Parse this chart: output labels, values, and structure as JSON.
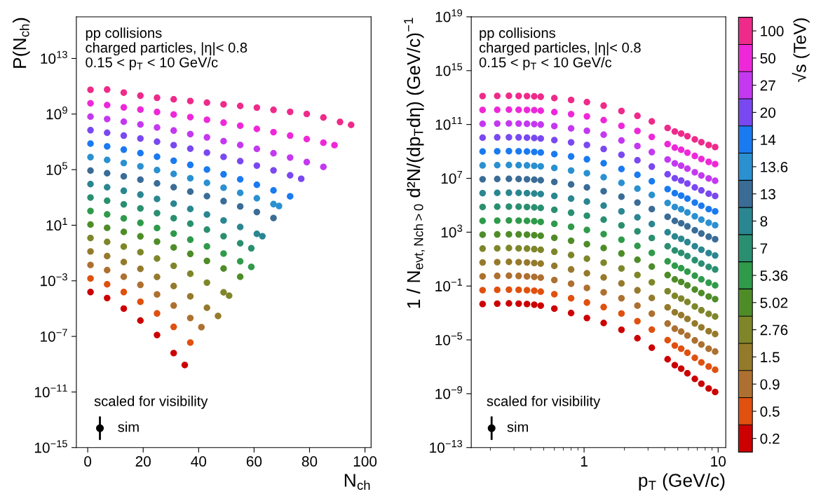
{
  "chart_data": [
    {
      "type": "scatter",
      "xlabel": "N$_{ch}$",
      "ylabel": "P(N$_{ch}$)",
      "log": "y",
      "grid": false,
      "marker": "circle",
      "annotations": [
        "pp collisions\ncharged particles, |η|< 0.8\n0.15 < p$_{T}$ < 10 GeV/c",
        "scaled for visibility",
        "sim"
      ],
      "xlim": [
        -4.1,
        102.2
      ],
      "xticks": [
        0,
        20,
        40,
        60,
        80,
        100
      ],
      "ylim": [
        1e-15,
        1e+16
      ],
      "yticks": [
        {
          "value": 1e-15,
          "label": "10$^{−15}$"
        },
        {
          "value": 1e-11,
          "label": "10$^{−11}$"
        },
        {
          "value": 1e-07,
          "label": "10$^{−7}$"
        },
        {
          "value": 0.001,
          "label": "10$^{−3}$"
        },
        {
          "value": 10,
          "label": "10$^{1}$"
        },
        {
          "value": 100000.0,
          "label": "10$^{5}$"
        },
        {
          "value": 1000000000.0,
          "label": "10$^{9}$"
        },
        {
          "value": 10000000000000.0,
          "label": "10$^{13}$"
        }
      ],
      "series": [
        {
          "color": "#cc0000",
          "x": [
            1,
            7,
            13,
            19,
            25,
            31,
            35
          ],
          "values": [
            0.000155,
            5.75e-05,
            1e-05,
            1.38e-06,
            1.26e-07,
            6.3e-09,
            8.7e-10
          ]
        },
        {
          "color": "#e0500e",
          "x": [
            1,
            7,
            13,
            19,
            25,
            31,
            37
          ],
          "values": [
            0.00148,
            0.00056,
            0.000155,
            3.1e-05,
            4.5e-06,
            4.8e-07,
            3.6e-08
          ]
        },
        {
          "color": "#ad7030",
          "x": [
            1,
            7,
            13,
            19,
            25,
            31,
            37,
            41
          ],
          "values": [
            0.0138,
            0.0059,
            0.00195,
            0.00051,
            0.000105,
            1.66e-05,
            2.1e-06,
            4.6e-07
          ]
        },
        {
          "color": "#957a2c",
          "x": [
            1,
            7,
            13,
            19,
            25,
            31,
            37,
            43,
            47
          ],
          "values": [
            0.129,
            0.06,
            0.0224,
            0.0072,
            0.0019,
            0.00042,
            7.6e-05,
            1.15e-05,
            2.95e-06
          ]
        },
        {
          "color": "#7f862a",
          "x": [
            1,
            7,
            13,
            19,
            25,
            31,
            37,
            43,
            49,
            51
          ],
          "values": [
            1.2,
            0.63,
            0.29,
            0.115,
            0.04,
            0.012,
            0.0032,
            0.00074,
            0.000148,
            8.5e-05
          ]
        },
        {
          "color": "#4e8c28",
          "x": [
            1,
            7,
            13,
            19,
            25,
            31,
            37,
            43,
            49,
            55
          ],
          "values": [
            11.2,
            6.5,
            3.3,
            1.58,
            0.66,
            0.25,
            0.087,
            0.027,
            0.0076,
            0.00195
          ]
        },
        {
          "color": "#2f9a4a",
          "x": [
            1,
            7,
            13,
            19,
            25,
            31,
            37,
            43,
            49,
            55,
            59
          ],
          "values": [
            105,
            60,
            31,
            14.8,
            6.3,
            2.5,
            0.91,
            0.3,
            0.091,
            0.025,
            0.01
          ]
        },
        {
          "color": "#2a8f70",
          "x": [
            1,
            7,
            13,
            19,
            25,
            31,
            37,
            43,
            49,
            55,
            59
          ],
          "values": [
            980,
            575,
            316,
            162,
            74,
            32,
            12.9,
            4.8,
            1.62,
            0.5,
            0.22
          ]
        },
        {
          "color": "#2a8690",
          "x": [
            1,
            7,
            13,
            19,
            25,
            31,
            37,
            43,
            49,
            55,
            61,
            63
          ],
          "values": [
            9100,
            5400,
            3000,
            1580,
            780,
            355,
            148,
            59,
            22,
            7.4,
            2.4,
            1.62
          ]
        },
        {
          "color": "#3a6c96",
          "x": [
            1,
            7,
            13,
            19,
            25,
            31,
            37,
            43,
            49,
            55,
            61,
            67
          ],
          "values": [
            85000,
            55000,
            33000,
            19000,
            10200,
            5400,
            2600,
            1230,
            540,
            224,
            89,
            33
          ]
        },
        {
          "color": "#2a90d0",
          "x": [
            1,
            7,
            13,
            19,
            25,
            31,
            37,
            43,
            49,
            55,
            61,
            67,
            69
          ],
          "values": [
            790000.0,
            500000.0,
            300000.0,
            174000.0,
            93000.0,
            49000.0,
            24000.0,
            11200.0,
            5000,
            2140,
            870,
            330,
            240
          ]
        },
        {
          "color": "#1a7af0",
          "x": [
            1,
            7,
            13,
            19,
            25,
            31,
            37,
            43,
            49,
            55,
            61,
            67,
            73
          ],
          "values": [
            7400000.0,
            4700000.0,
            2750000.0,
            1550000.0,
            850000.0,
            440000.0,
            220000.0,
            102000.0,
            46000.0,
            20000.0,
            8100,
            3200,
            1200
          ]
        },
        {
          "color": "#7a48f0",
          "x": [
            1,
            7,
            13,
            19,
            25,
            31,
            37,
            43,
            49,
            55,
            61,
            67,
            73,
            77
          ],
          "values": [
            69000000.0,
            45000000.0,
            28000000.0,
            17400000.0,
            10200000.0,
            5800000.0,
            3200000.0,
            1660000.0,
            830000.0,
            410000.0,
            195000.0,
            89000.0,
            39000.0,
            22000.0
          ]
        },
        {
          "color": "#c438f0",
          "x": [
            1,
            7,
            13,
            19,
            25,
            31,
            37,
            43,
            49,
            55,
            61,
            67,
            73,
            79,
            85
          ],
          "values": [
            650000000.0,
            440000000.0,
            280000000.0,
            178000000.0,
            107000000.0,
            65000000.0,
            36000000.0,
            21000000.0,
            11200000.0,
            5900000.0,
            3100000.0,
            1510000.0,
            740000.0,
            350000.0,
            158000.0
          ]
        },
        {
          "color": "#ee28d8",
          "x": [
            1,
            7,
            13,
            19,
            25,
            31,
            37,
            43,
            49,
            55,
            61,
            67,
            73,
            79,
            85,
            89
          ],
          "values": [
            6000000000.0,
            4400000000.0,
            3000000000.0,
            2100000000.0,
            1410000000.0,
            930000000.0,
            600000000.0,
            390000000.0,
            240000000.0,
            145000000.0,
            85000000.0,
            50000000.0,
            28000000.0,
            15800000.0,
            8700000.0,
            5800000.0
          ]
        },
        {
          "color": "#ee2a8a",
          "x": [
            1,
            7,
            13,
            19,
            25,
            31,
            37,
            43,
            49,
            55,
            61,
            67,
            73,
            79,
            85,
            91,
            95
          ],
          "values": [
            56000000000.0,
            58000000000.0,
            35000000000.0,
            21000000000.0,
            14800000000.0,
            11500000000.0,
            8700000000.0,
            6600000000.0,
            5000000000.0,
            3800000000.0,
            2900000000.0,
            2000000000.0,
            1450000000.0,
            1020000000.0,
            560000000.0,
            270000000.0,
            166000000.0
          ]
        }
      ]
    },
    {
      "type": "scatter",
      "xlabel": "p$_{T}$ (GeV/c)",
      "ylabel": "1 / N$_{evt,Nch>0}$ d²N/(dp$_{T}$dη) (GeV/c)$^{−1}$",
      "log": "xy",
      "grid": false,
      "legend": "right",
      "marker": "circle",
      "clabel": "√s (TeV)",
      "annotations": [
        "pp collisions\ncharged particles, |η|< 0.8\n0.15 < p$_{T}$ < 10 GeV/c",
        "scaled for visibility",
        "sim"
      ],
      "x": [
        0.175,
        0.225,
        0.275,
        0.325,
        0.375,
        0.425,
        0.475,
        0.6,
        0.8,
        1.05,
        1.4,
        1.9,
        2.5,
        3.2,
        4.2,
        4.75,
        5.3,
        5.9,
        6.7,
        7.5,
        8.5,
        9.5
      ],
      "xlim": [
        0.144,
        11.4
      ],
      "xticks": [
        1,
        10
      ],
      "ylim": [
        1e-13,
        1e+19
      ],
      "yticks": [
        {
          "value": 1e-13,
          "label": "10$^{−13}$"
        },
        {
          "value": 1e-09,
          "label": "10$^{−9}$"
        },
        {
          "value": 1e-05,
          "label": "10$^{−5}$"
        },
        {
          "value": 0.1,
          "label": "10$^{−1}$"
        },
        {
          "value": 1000,
          "label": "10$^{3}$"
        },
        {
          "value": 10000000.0,
          "label": "10$^{7}$"
        },
        {
          "value": 100000000000.0,
          "label": "10$^{11}$"
        },
        {
          "value": 1000000000000000.0,
          "label": "10$^{15}$"
        },
        {
          "value": 1e+19,
          "label": "10$^{19}$"
        }
      ],
      "series": [
        {
          "name": "0.2",
          "color": "#cc0000",
          "values": [
            0.0046,
            0.0049,
            0.0051,
            0.0049,
            0.0046,
            0.0041,
            0.0035,
            0.0021,
            0.00098,
            0.00042,
            0.000178,
            5.6e-05,
            1.32e-05,
            2.6e-06,
            3.6e-07,
            1.32e-07,
            7.2e-08,
            3.3e-08,
            1.26e-08,
            5.5e-09,
            2.45e-09,
            1.35e-09
          ]
        },
        {
          "name": "0.5",
          "color": "#e0500e",
          "values": [
            0.049,
            0.052,
            0.054,
            0.052,
            0.049,
            0.045,
            0.038,
            0.0245,
            0.0123,
            0.0059,
            0.0027,
            0.00091,
            0.000245,
            5.8e-05,
            9.5e-06,
            3.8e-06,
            2.2e-06,
            1.1e-06,
            4.6e-07,
            2.1e-07,
            1.05e-07,
            6e-08
          ]
        },
        {
          "name": "0.9",
          "color": "#ad7030",
          "values": [
            0.52,
            0.56,
            0.58,
            0.56,
            0.52,
            0.48,
            0.42,
            0.28,
            0.148,
            0.072,
            0.034,
            0.0123,
            0.0035,
            0.00089,
            0.000162,
            6.8e-05,
            4.1e-05,
            2.1e-05,
            9.1e-06,
            4.5e-06,
            2.2e-06,
            1.35e-06
          ]
        },
        {
          "name": "1.5",
          "color": "#957a2c",
          "values": [
            5.6,
            5.9,
            6.2,
            5.9,
            5.6,
            5.1,
            4.6,
            3.1,
            1.7,
            0.89,
            0.43,
            0.155,
            0.048,
            0.0129,
            0.0026,
            0.00112,
            0.00069,
            0.00036,
            0.000166,
            8.5e-05,
            4.4e-05,
            2.7e-05
          ]
        },
        {
          "name": "2.76",
          "color": "#7f862a",
          "values": [
            60,
            63,
            66,
            63,
            60,
            55,
            49,
            35,
            20,
            10.7,
            5.4,
            2.0,
            0.66,
            0.19,
            0.041,
            0.0186,
            0.0117,
            0.0065,
            0.003,
            0.00158,
            0.00085,
            0.00054
          ]
        },
        {
          "name": "5.02",
          "color": "#4e8c28",
          "values": [
            650,
            680,
            690,
            680,
            650,
            600,
            540,
            380,
            230,
            129,
            66,
            26,
            8.9,
            2.75,
            0.65,
            0.31,
            0.2,
            0.112,
            0.055,
            0.03,
            0.0166,
            0.0107
          ]
        },
        {
          "name": "5.36",
          "color": "#2f9a4a",
          "values": [
            6900,
            7200,
            7400,
            7200,
            6900,
            6500,
            5800,
            4200,
            2500,
            1450,
            720,
            275,
            95,
            29,
            6.8,
            3.2,
            2.1,
            1.17,
            0.58,
            0.31,
            0.174,
            0.112
          ]
        },
        {
          "name": "7",
          "color": "#2a8f70",
          "values": [
            74000.0,
            78000.0,
            79000.0,
            78000.0,
            74000.0,
            69000.0,
            63000.0,
            46000.0,
            28000.0,
            16600.0,
            8500,
            3200,
            1150,
            370,
            89,
            44,
            29,
            16.6,
            8.3,
            4.6,
            2.6,
            1.7
          ]
        },
        {
          "name": "8",
          "color": "#2a8690",
          "values": [
            790000.0,
            830000.0,
            850000.0,
            830000.0,
            790000.0,
            740000.0,
            680000.0,
            490000.0,
            310000.0,
            186000.0,
            93000.0,
            35000.0,
            12600.0,
            4000,
            980,
            480,
            320,
            182,
            91,
            50,
            28,
            18.6
          ]
        },
        {
          "name": "13",
          "color": "#3a6c96",
          "values": [
            8500000.0,
            8900000.0,
            9100000.0,
            8900000.0,
            8500000.0,
            7900000.0,
            7200000.0,
            5400000.0,
            3500000.0,
            2100000.0,
            1100000.0,
            430000.0,
            158000.0,
            52000.0,
            13800.0,
            6900,
            4600,
            2700,
            1380,
            790,
            460,
            300
          ]
        },
        {
          "name": "13.6",
          "color": "#2a90d0",
          "values": [
            91000000.0,
            95000000.0,
            98000000.0,
            95000000.0,
            91000000.0,
            85000000.0,
            78000000.0,
            59000000.0,
            38000000.0,
            24000000.0,
            12000000.0,
            4600000.0,
            1700000.0,
            580000.0,
            148000.0,
            74000.0,
            50000.0,
            29000.0,
            15100.0,
            8500,
            5000,
            3300
          ]
        },
        {
          "name": "14",
          "color": "#1a7af0",
          "values": [
            980000000.0,
            1020000000.0,
            1050000000.0,
            1020000000.0,
            980000000.0,
            910000000.0,
            830000000.0,
            630000000.0,
            420000000.0,
            260000000.0,
            132000000.0,
            49000000.0,
            18200000.0,
            6000000.0,
            1580000.0,
            790000.0,
            520000.0,
            310000.0,
            158000.0,
            91000.0,
            52000.0,
            35000.0
          ]
        },
        {
          "name": "20",
          "color": "#7a48f0",
          "values": [
            10500000000.0,
            11000000000.0,
            11200000000.0,
            11000000000.0,
            10500000000.0,
            9800000000.0,
            9100000000.0,
            6900000000.0,
            4700000000.0,
            3000000000.0,
            1510000000.0,
            560000000.0,
            220000000.0,
            74000000.0,
            20000000.0,
            10200000.0,
            6900000.0,
            4100000.0,
            2100000.0,
            1260000.0,
            720000.0,
            490000.0
          ]
        },
        {
          "name": "27",
          "color": "#c438f0",
          "values": [
            112000000000.0,
            117000000000.0,
            120000000000.0,
            117000000000.0,
            112000000000.0,
            107000000000.0,
            98000000000.0,
            76000000000.0,
            51000000000.0,
            34000000000.0,
            17400000000.0,
            6500000000.0,
            2500000000.0,
            890000000.0,
            250000000.0,
            129000000.0,
            87000000.0,
            52000000.0,
            28000000.0,
            16200000.0,
            9800000.0,
            6600000.0
          ]
        },
        {
          "name": "50",
          "color": "#ee28d8",
          "values": [
            1200000000000.0,
            1230000000000.0,
            1260000000000.0,
            1230000000000.0,
            1200000000000.0,
            1150000000000.0,
            1050000000000.0,
            830000000000.0,
            590000000000.0,
            400000000000.0,
            210000000000.0,
            79000000000.0,
            33000000000.0,
            12000000000.0,
            3500000000.0,
            1900000000.0,
            1320000000.0,
            810000000.0,
            460000000.0,
            270000000.0,
            166000000.0,
            115000000.0
          ]
        },
        {
          "name": "100",
          "color": "#ee2a8a",
          "values": [
            12900000000000.0,
            13200000000000.0,
            13500000000000.0,
            13200000000000.0,
            12900000000000.0,
            12300000000000.0,
            11500000000000.0,
            9100000000000.0,
            6600000000000.0,
            4600000000000.0,
            2500000000000.0,
            1000000000000.0,
            440000000000.0,
            170000000000.0,
            55000000000.0,
            30000000000.0,
            21000000000.0,
            13500000000.0,
            7800000000.0,
            4800000000.0,
            3000000000.0,
            2100000000.0
          ]
        }
      ]
    }
  ]
}
